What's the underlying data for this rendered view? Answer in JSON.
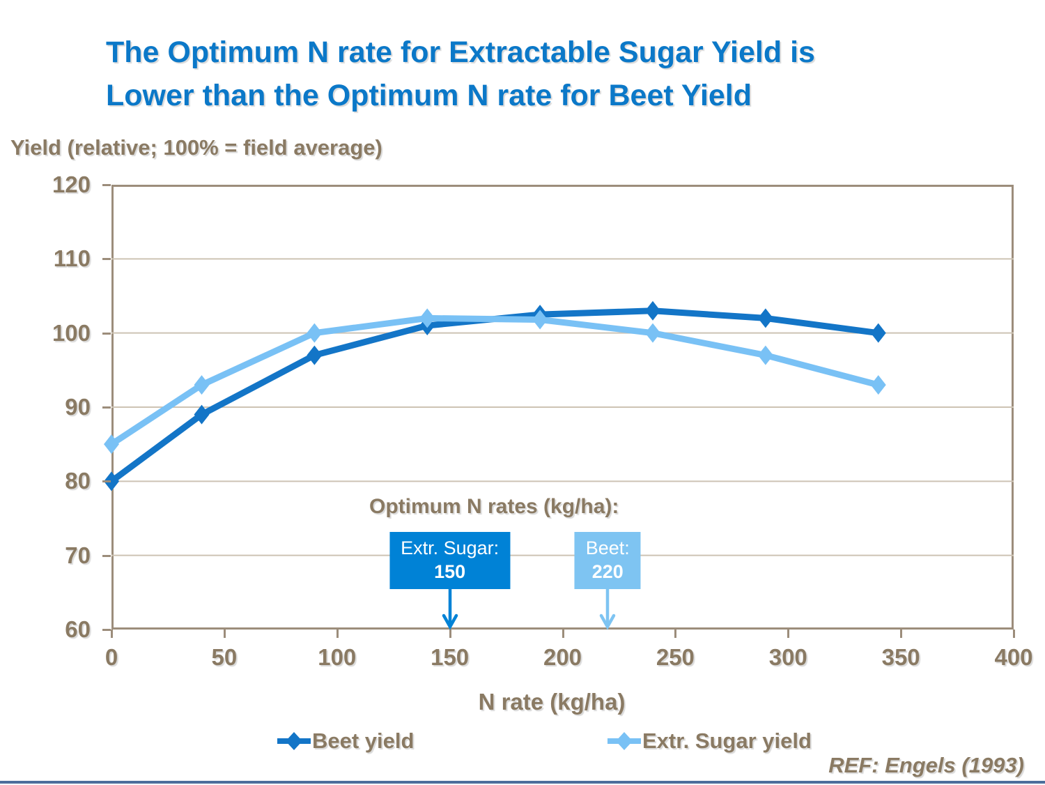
{
  "title": {
    "lines": [
      "The Optimum N rate for Extractable Sugar Yield is",
      "Lower than the Optimum N rate for Beet Yield"
    ]
  },
  "annotation": {
    "heading": "Optimum N rates (kg/ha):",
    "boxes": [
      {
        "label": "Extr. Sugar:",
        "value": "150",
        "x": 150,
        "color": "#0082D6"
      },
      {
        "label": "Beet:",
        "value": "220",
        "x": 220,
        "color": "#7EC4F2"
      }
    ]
  },
  "ref": "REF: Engels (1993)",
  "colors": {
    "title_blue": "#0B78C8",
    "brown_text": "#8A7A63",
    "beet_blue": "#1375C7",
    "sugar_blue": "#79C1F5",
    "gridline": "#CDC3B4",
    "plot_border": "#9C8D7B",
    "bottom_bar": "#4C6E9C"
  },
  "chart_data": {
    "type": "line",
    "title": "The Optimum N rate for Extractable Sugar Yield is Lower than the Optimum N rate for Beet Yield",
    "x": [
      0,
      40,
      90,
      140,
      190,
      240,
      290,
      340
    ],
    "series": [
      {
        "name": "Beet yield",
        "color": "#1375C7",
        "values": [
          80,
          89,
          97,
          101,
          102.5,
          103,
          102,
          100
        ]
      },
      {
        "name": "Extr. Sugar yield",
        "color": "#79C1F5",
        "values": [
          85,
          93,
          100,
          102,
          101.8,
          100,
          97,
          93
        ]
      }
    ],
    "xlabel": "N rate (kg/ha)",
    "ylabel": "Yield (relative; 100% = field average)",
    "xlim": [
      0,
      400
    ],
    "ylim": [
      60,
      120
    ],
    "x_ticks": [
      0,
      50,
      100,
      150,
      200,
      250,
      300,
      350,
      400
    ],
    "y_ticks": [
      60,
      70,
      80,
      90,
      100,
      110,
      120
    ],
    "grid": "horizontal",
    "marker": "diamond",
    "legend_position": "bottom",
    "annotations": [
      {
        "text": "Optimum N rates (kg/ha):"
      },
      {
        "text": "Extr. Sugar: 150",
        "arrow_x": 150
      },
      {
        "text": "Beet: 220",
        "arrow_x": 220
      }
    ]
  }
}
